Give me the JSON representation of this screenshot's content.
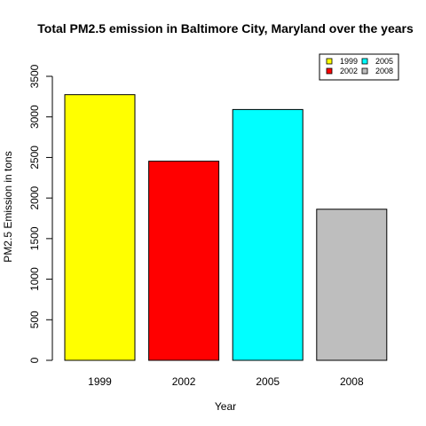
{
  "chart_data": {
    "type": "bar",
    "title": "Total PM2.5 emission in Baltimore City, Maryland over the years",
    "xlabel": "Year",
    "ylabel": "PM2.5 Emission in tons",
    "categories": [
      "1999",
      "2002",
      "2005",
      "2008"
    ],
    "values": [
      3274,
      2454,
      3091,
      1862
    ],
    "colors": [
      "#FFFF00",
      "#FF0000",
      "#00FFFF",
      "#BEBEBE"
    ],
    "ylim": [
      0,
      3500
    ],
    "yticks": [
      "0",
      "500",
      "1000",
      "1500",
      "2000",
      "2500",
      "3000",
      "3500"
    ],
    "legend": {
      "placement": "top-right",
      "entries": [
        "1999",
        "2002",
        "2005",
        "2008"
      ]
    },
    "grid": false
  }
}
